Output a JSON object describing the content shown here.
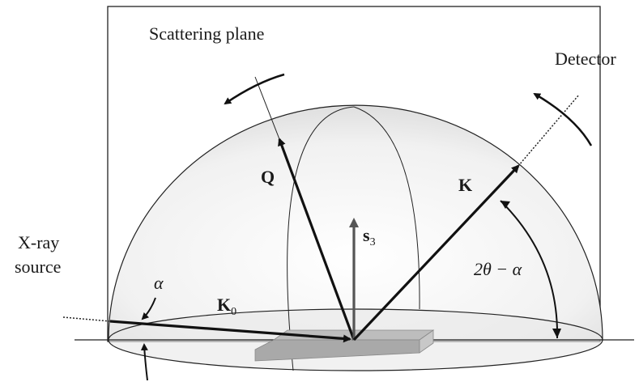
{
  "labels": {
    "scattering_plane": "Scattering plane",
    "detector": "Detector",
    "xray_line1": "X-ray",
    "xray_line2": "source",
    "q": "Q",
    "k": "K",
    "k0_main": "K",
    "k0_sub": "0",
    "s3_main": "s",
    "s3_sub": "3",
    "alpha": "α",
    "two_theta_minus_alpha": "2θ − α"
  }
}
